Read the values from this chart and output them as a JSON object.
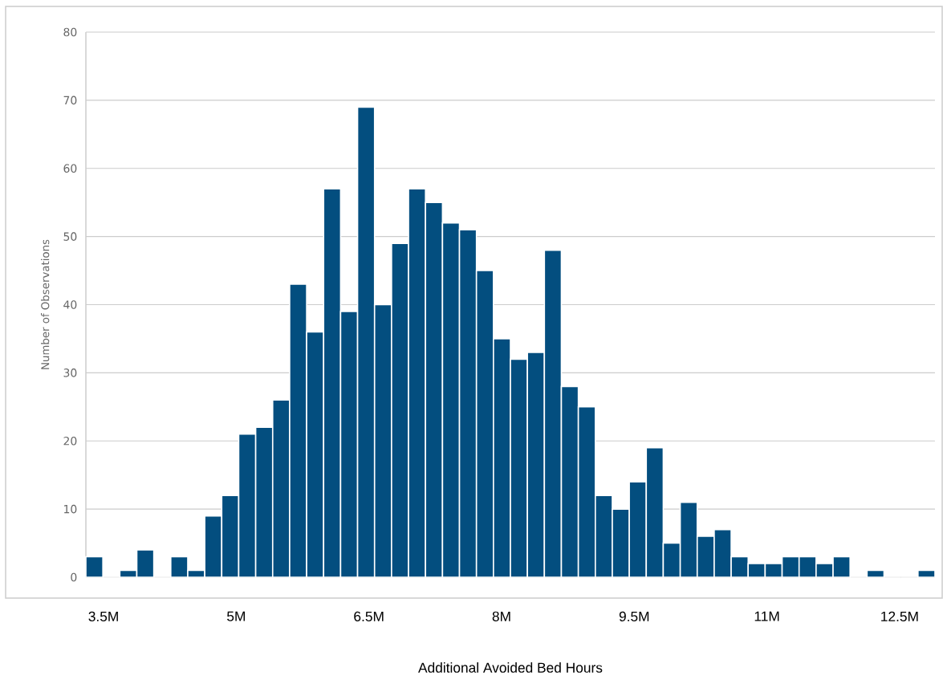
{
  "chart_data": {
    "type": "histogram",
    "xlabel": "Additional Avoided Bed Hours",
    "ylabel": "Number of Observations",
    "bins": [
      3300000,
      3492000,
      3684000,
      3876000,
      4068000,
      4260000,
      4452000,
      4644000,
      4836000,
      5028000,
      5220000,
      5412000,
      5604000,
      5796000,
      5988000,
      6180000,
      6372000,
      6564000,
      6756000,
      6948000,
      7140000,
      7332000,
      7524000,
      7716000,
      7908000,
      8100000,
      8292000,
      8484000,
      8676000,
      8868000,
      9060000,
      9252000,
      9444000,
      9636000,
      9828000,
      10020000,
      10212000,
      10404000,
      10596000,
      10788000,
      10980000,
      11172000,
      11364000,
      11556000,
      11748000,
      11940000,
      12132000,
      12324000,
      12516000,
      12708000,
      12900000
    ],
    "values": [
      3,
      0,
      1,
      4,
      0,
      3,
      1,
      9,
      12,
      21,
      22,
      26,
      43,
      36,
      57,
      39,
      69,
      40,
      49,
      57,
      55,
      52,
      51,
      45,
      35,
      32,
      33,
      48,
      28,
      25,
      12,
      10,
      14,
      19,
      5,
      11,
      6,
      7,
      3,
      2,
      2,
      3,
      3,
      2,
      3,
      0,
      1,
      0,
      0,
      1
    ],
    "color": "#034e7f",
    "xlim": [
      3300000,
      12900000
    ],
    "ylim": [
      0,
      80
    ],
    "xticks": [
      {
        "value": 3500000,
        "label": "3.5M"
      },
      {
        "value": 5000000,
        "label": "5M"
      },
      {
        "value": 6500000,
        "label": "6.5M"
      },
      {
        "value": 8000000,
        "label": "8M"
      },
      {
        "value": 9500000,
        "label": "9.5M"
      },
      {
        "value": 11000000,
        "label": "11M"
      },
      {
        "value": 12500000,
        "label": "12.5M"
      }
    ],
    "yticks": [
      0,
      10,
      20,
      30,
      40,
      50,
      60,
      70,
      80
    ],
    "grid": "y"
  }
}
